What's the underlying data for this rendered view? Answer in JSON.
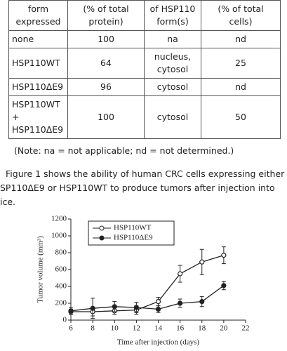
{
  "table": {
    "header": [
      [
        "form",
        "expressed"
      ],
      [
        "(% of total",
        "protein)"
      ],
      [
        "of HSP110",
        "form(s)"
      ],
      [
        "(% of total",
        "cells)"
      ]
    ],
    "rows": [
      [
        "none",
        100,
        "na",
        "nd"
      ],
      [
        "HSP110WT",
        64,
        "nucleus, cytosol",
        25
      ],
      [
        "HSP110ΔE9",
        96,
        "cytosol",
        "nd"
      ],
      [
        "HSP110WT + HSP110ΔE9",
        100,
        "cytosol",
        50
      ]
    ]
  },
  "note": "(Note: na = not applicable; nd = not determined.)",
  "paragraph": [
    "Figure 1 shows the ability of human CRC cells expressing either",
    "SP110ΔE9 or HSP110WT to produce tumors after injection into",
    "ice."
  ],
  "chart_data": {
    "type": "line",
    "xlabel": "Time after injection (days)",
    "ylabel": "Tumor volume (mm³)",
    "x": [
      6,
      8,
      10,
      12,
      14,
      16,
      18,
      20
    ],
    "series": [
      {
        "name": "HSP110WT",
        "color": "#222222",
        "marker": "open",
        "values": [
          100,
          100,
          110,
          120,
          220,
          550,
          690,
          770
        ],
        "errors": [
          30,
          50,
          40,
          50,
          50,
          100,
          150,
          100
        ]
      },
      {
        "name": "HSP110ΔE9",
        "color": "#222222",
        "marker": "filled",
        "values": [
          110,
          140,
          160,
          150,
          130,
          200,
          220,
          410
        ],
        "errors": [
          40,
          120,
          60,
          60,
          40,
          50,
          60,
          50
        ]
      }
    ],
    "xlim": [
      6,
      22
    ],
    "xticks": [
      6,
      8,
      10,
      12,
      14,
      16,
      18,
      20,
      22
    ],
    "ylim": [
      0,
      1200
    ],
    "yticks": [
      0,
      200,
      400,
      600,
      800,
      1000,
      1200
    ]
  }
}
